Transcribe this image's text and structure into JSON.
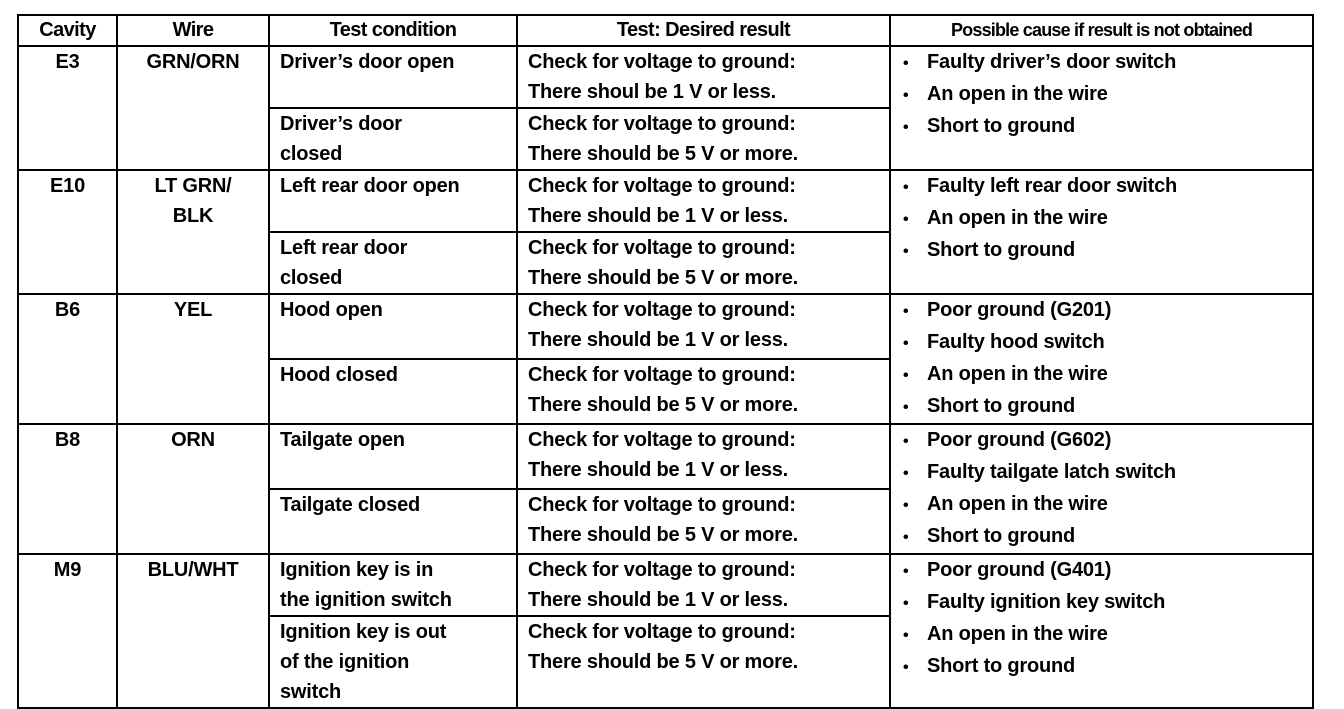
{
  "headers": [
    "Cavity",
    "Wire",
    "Test condition",
    "Test: Desired result",
    "Possible cause if result is not obtained"
  ],
  "rows": [
    {
      "cavity": "E3",
      "wire": [
        "GRN/ORN"
      ],
      "tests": [
        {
          "condition": [
            "Driver’s door open"
          ],
          "result": [
            "Check for voltage to ground:",
            "There shoul be 1 V or less."
          ]
        },
        {
          "condition": [
            "Driver’s door",
            "closed"
          ],
          "result": [
            "Check for voltage to ground:",
            "There should be 5 V or more."
          ]
        }
      ],
      "causes": [
        "Faulty driver’s door switch",
        "An open in the wire",
        "Short to ground"
      ]
    },
    {
      "cavity": "E10",
      "wire": [
        "LT GRN/",
        "BLK"
      ],
      "tests": [
        {
          "condition": [
            "Left rear door open"
          ],
          "result": [
            "Check for voltage to ground:",
            "There should be 1 V or less."
          ]
        },
        {
          "condition": [
            "Left rear door",
            "closed"
          ],
          "result": [
            "Check for voltage to ground:",
            "There should be 5 V or more."
          ]
        }
      ],
      "causes": [
        "Faulty left rear door switch",
        "An open in the wire",
        "Short to ground"
      ]
    },
    {
      "cavity": "B6",
      "wire": [
        "YEL"
      ],
      "tests": [
        {
          "condition": [
            "Hood open"
          ],
          "result": [
            "Check for voltage to ground:",
            "There should be 1 V or less."
          ]
        },
        {
          "condition": [
            "Hood closed"
          ],
          "result": [
            "Check for voltage to ground:",
            "There should be 5 V or more."
          ]
        }
      ],
      "causes": [
        "Poor ground (G201)",
        "Faulty hood switch",
        "An open in the wire",
        "Short to ground"
      ]
    },
    {
      "cavity": "B8",
      "wire": [
        "ORN"
      ],
      "tests": [
        {
          "condition": [
            "Tailgate open"
          ],
          "result": [
            "Check for voltage to ground:",
            "There should be 1 V or less."
          ]
        },
        {
          "condition": [
            "Tailgate closed"
          ],
          "result": [
            "Check for voltage to ground:",
            "There should be 5 V or more."
          ]
        }
      ],
      "causes": [
        "Poor ground (G602)",
        "Faulty tailgate latch switch",
        "An open in the wire",
        "Short to ground"
      ]
    },
    {
      "cavity": "M9",
      "wire": [
        "BLU/WHT"
      ],
      "tests": [
        {
          "condition": [
            "Ignition key is in",
            "the ignition switch"
          ],
          "result": [
            "Check for voltage to ground:",
            "There should be 1 V or less."
          ]
        },
        {
          "condition": [
            "Ignition key is out",
            "of the ignition",
            "switch"
          ],
          "result": [
            "Check for voltage to ground:",
            "There should be 5 V or more."
          ]
        }
      ],
      "causes": [
        "Poor ground (G401)",
        "Faulty ignition key switch",
        "An open in the wire",
        "Short to ground"
      ]
    }
  ]
}
